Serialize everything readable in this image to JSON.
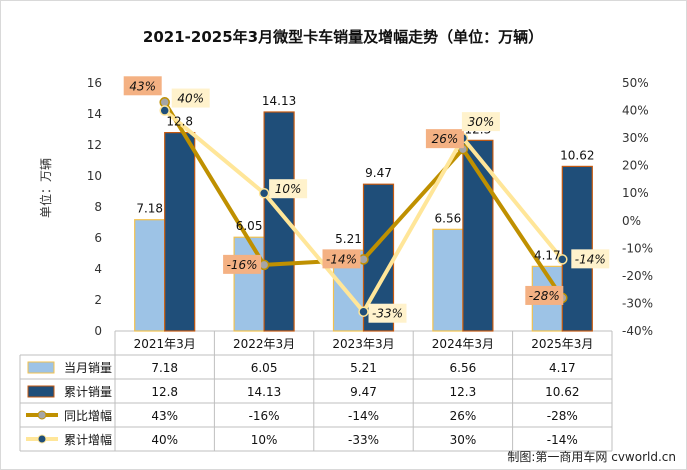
{
  "chart_data": {
    "type": "bar",
    "title": "2021-2025年3月微型卡车销量及增幅走势（单位：万辆）",
    "ylabel": "单位：万辆",
    "ylim": [
      0,
      16
    ],
    "y_ticks": [
      0,
      2,
      4,
      6,
      8,
      10,
      12,
      14,
      16
    ],
    "y2lim": [
      -40,
      50
    ],
    "y2_ticks": [
      "-40%",
      "-30%",
      "-20%",
      "-10%",
      "0%",
      "10%",
      "20%",
      "30%",
      "40%",
      "50%"
    ],
    "categories": [
      "2021年3月",
      "2022年3月",
      "2023年3月",
      "2024年3月",
      "2025年3月"
    ],
    "series": [
      {
        "name": "当月销量",
        "kind": "bar",
        "axis": "left",
        "color": "#9DC3E6",
        "border": "#F2C14E",
        "values": [
          7.18,
          6.05,
          5.21,
          6.56,
          4.17
        ],
        "labels": [
          "7.18",
          "6.05",
          "5.21",
          "6.56",
          "4.17"
        ]
      },
      {
        "name": "累计销量",
        "kind": "bar",
        "axis": "left",
        "color": "#1F4E79",
        "border": "#C55A11",
        "values": [
          12.8,
          14.13,
          9.47,
          12.3,
          10.62
        ],
        "labels": [
          "12.8",
          "14.13",
          "9.47",
          "12.3",
          "10.62"
        ]
      },
      {
        "name": "同比增幅",
        "kind": "line",
        "axis": "right",
        "color": "#BF9000",
        "marker": "#A5A5A5",
        "values": [
          43,
          -16,
          -14,
          26,
          -28
        ],
        "labels": [
          "43%",
          "-16%",
          "-14%",
          "26%",
          "-28%"
        ]
      },
      {
        "name": "累计增幅",
        "kind": "line",
        "axis": "right",
        "color": "#FFE699",
        "marker": "#1F4E79",
        "values": [
          40,
          10,
          -33,
          30,
          -14
        ],
        "labels": [
          "40%",
          "10%",
          "-33%",
          "30%",
          "-14%"
        ]
      }
    ],
    "grid": false,
    "legend": "data-table-bottom"
  },
  "credit": "制图:第一商用车网 cvworld.cn"
}
